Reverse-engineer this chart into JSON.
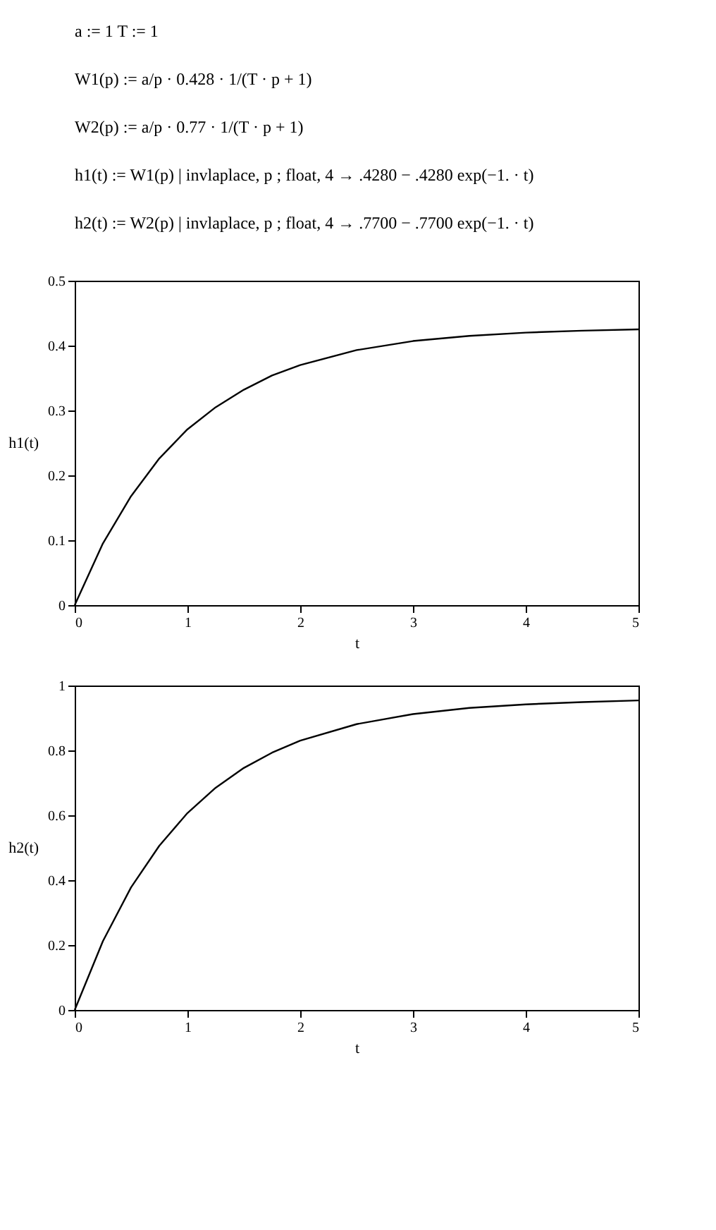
{
  "chart_data": [
    {
      "type": "line",
      "annotations": [
        "a := 1     T := 1",
        "W1(p) := a/p · 0.428 · 1/(T · p + 1)",
        "W2(p) := a/p · 0.77 · 1/(T · p + 1)",
        "h1(t) := W1(p) | invlaplace, p ; float, 4 → .4280 − .4280 exp(−1. · t)",
        "h2(t) := W2(p) | invlaplace, p ; float, 4 → .7700 − .7700 exp(−1. · t)"
      ],
      "xlabel": "t",
      "ylabel": "h1(t)",
      "xlim": [
        0,
        5
      ],
      "xticks": [
        0,
        1,
        2,
        3,
        4,
        5
      ],
      "ylim": [
        0,
        0.5
      ],
      "yticks": [
        0,
        0.1,
        0.2,
        0.3,
        0.4,
        0.5
      ],
      "grid": false,
      "series": [
        {
          "color": "#000000",
          "x": [
            0,
            0.25,
            0.5,
            0.75,
            1,
            1.25,
            1.5,
            1.75,
            2,
            2.5,
            3,
            3.5,
            4,
            4.5,
            5
          ],
          "values": [
            0,
            0.095,
            0.168,
            0.226,
            0.271,
            0.305,
            0.332,
            0.354,
            0.37,
            0.393,
            0.407,
            0.415,
            0.42,
            0.423,
            0.425
          ]
        }
      ]
    },
    {
      "type": "line",
      "xlabel": "t",
      "ylabel": "h2(t)",
      "xlim": [
        0,
        5
      ],
      "xticks": [
        0,
        1,
        2,
        3,
        4,
        5
      ],
      "ylim": [
        0,
        1
      ],
      "yticks": [
        0,
        0.2,
        0.4,
        0.6,
        0.8,
        1
      ],
      "grid": false,
      "series": [
        {
          "color": "#000000",
          "x": [
            0,
            0.25,
            0.5,
            0.75,
            1,
            1.25,
            1.5,
            1.75,
            2,
            2.5,
            3,
            3.5,
            4,
            4.5,
            5
          ],
          "values": [
            0,
            0.212,
            0.378,
            0.506,
            0.607,
            0.685,
            0.746,
            0.793,
            0.83,
            0.881,
            0.912,
            0.931,
            0.942,
            0.949,
            0.954
          ]
        }
      ]
    }
  ]
}
